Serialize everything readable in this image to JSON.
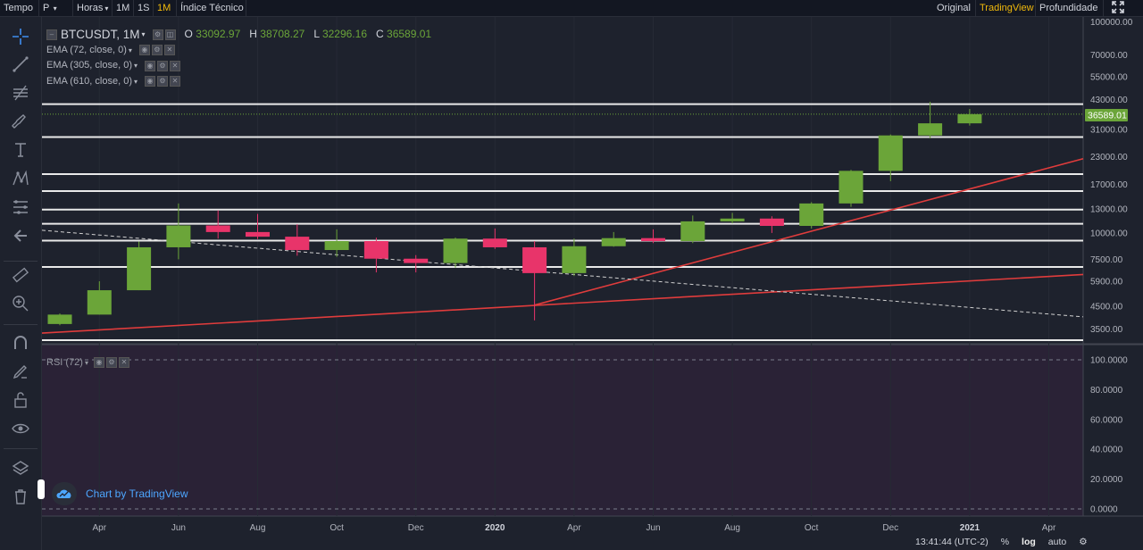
{
  "topbar": {
    "tempo_label": "Tempo",
    "style_label": "P",
    "horas_label": "Horas",
    "interval_1M": "1M",
    "interval_1S": "1S",
    "interval_active": "1M",
    "indicator_label": "Índice Técnico",
    "view_original": "Original",
    "view_tradingview": "TradingView",
    "view_depth": "Profundidade"
  },
  "legend": {
    "symbol": "BTCUSDT, 1M",
    "o_label": "O",
    "o_value": "33092.97",
    "h_label": "H",
    "h_value": "38708.27",
    "l_label": "L",
    "l_value": "32296.16",
    "c_label": "C",
    "c_value": "36589.01",
    "studies": [
      "EMA (72, close, 0)",
      "EMA (305, close, 0)",
      "EMA (610, close, 0)"
    ]
  },
  "rsi_label": "RSI (72)",
  "watermark": "Chart by TradingView",
  "bottombar": {
    "time": "13:41:44 (UTC-2)",
    "percent": "%",
    "log": "log",
    "auto": "auto"
  },
  "colors": {
    "up": "#6ba539",
    "down": "#e8346a",
    "trend": "#e03c3c",
    "price_tag": "#6ba539"
  },
  "chart_data": {
    "type": "candlestick",
    "symbol": "BTCUSDT",
    "interval": "1M",
    "scale": "log",
    "x_tick_labels": [
      "Apr",
      "Jun",
      "Aug",
      "Oct",
      "Dec",
      "2020",
      "Apr",
      "Jun",
      "Aug",
      "Oct",
      "Dec",
      "2021",
      "Apr"
    ],
    "y_tick_labels": [
      "100000.00",
      "70000.00",
      "55000.00",
      "43000.00",
      "31000.00",
      "23000.00",
      "17000.00",
      "13000.00",
      "10000.00",
      "7500.00",
      "5900.00",
      "4500.00",
      "3500.00"
    ],
    "last_price": "36589.01",
    "candles": [
      {
        "o": 3700,
        "h": 4150,
        "l": 3650,
        "c": 4100
      },
      {
        "o": 4100,
        "h": 5900,
        "l": 4100,
        "c": 5350
      },
      {
        "o": 5350,
        "h": 9100,
        "l": 5350,
        "c": 8550
      },
      {
        "o": 8550,
        "h": 13800,
        "l": 7500,
        "c": 10850
      },
      {
        "o": 10850,
        "h": 12800,
        "l": 9400,
        "c": 10100
      },
      {
        "o": 10100,
        "h": 12300,
        "l": 9350,
        "c": 9600
      },
      {
        "o": 9600,
        "h": 11000,
        "l": 7800,
        "c": 8300
      },
      {
        "o": 8300,
        "h": 10400,
        "l": 7700,
        "c": 9150
      },
      {
        "o": 9150,
        "h": 9500,
        "l": 6500,
        "c": 7550
      },
      {
        "o": 7550,
        "h": 7850,
        "l": 6500,
        "c": 7200
      },
      {
        "o": 7200,
        "h": 9500,
        "l": 6850,
        "c": 9400
      },
      {
        "o": 9400,
        "h": 10500,
        "l": 8400,
        "c": 8550
      },
      {
        "o": 8550,
        "h": 9150,
        "l": 3850,
        "c": 6450
      },
      {
        "o": 6450,
        "h": 9400,
        "l": 6250,
        "c": 8650
      },
      {
        "o": 8650,
        "h": 10100,
        "l": 8600,
        "c": 9450
      },
      {
        "o": 9450,
        "h": 10400,
        "l": 8950,
        "c": 9150
      },
      {
        "o": 9150,
        "h": 12100,
        "l": 8950,
        "c": 11350
      },
      {
        "o": 11350,
        "h": 12450,
        "l": 11100,
        "c": 11700
      },
      {
        "o": 11700,
        "h": 12000,
        "l": 10000,
        "c": 10800
      },
      {
        "o": 10800,
        "h": 14000,
        "l": 10500,
        "c": 13800
      },
      {
        "o": 13800,
        "h": 19900,
        "l": 13300,
        "c": 19700
      },
      {
        "o": 19700,
        "h": 29300,
        "l": 17600,
        "c": 29000
      },
      {
        "o": 29000,
        "h": 41900,
        "l": 28100,
        "c": 33100
      },
      {
        "o": 33092.97,
        "h": 38708.27,
        "l": 32296.16,
        "c": 36589.01
      }
    ]
  },
  "rsi_axis": [
    "100.0000",
    "80.0000",
    "60.0000",
    "40.0000",
    "20.0000",
    "0.0000"
  ]
}
